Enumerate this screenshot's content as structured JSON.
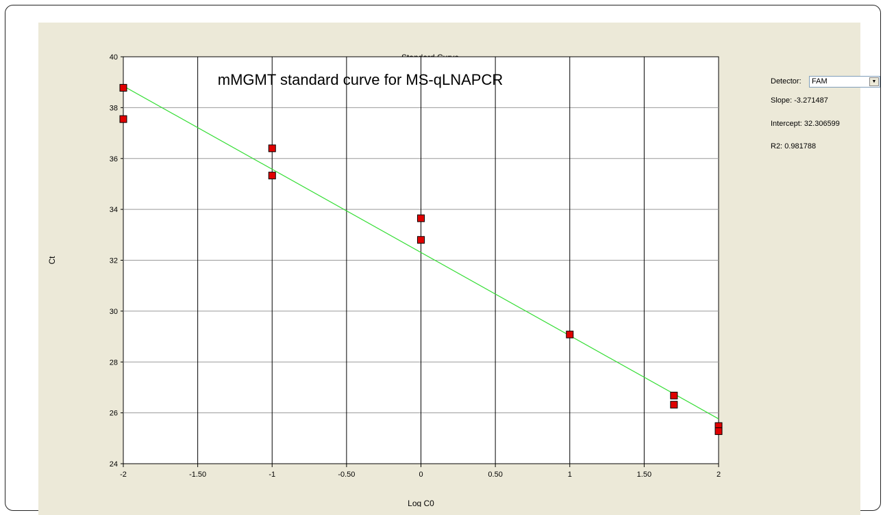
{
  "window": {
    "chart_heading": "Standard Curve",
    "detector_label": "Detector:",
    "detector_value": "FAM",
    "slope_label": "Slope:",
    "slope_value": "-3.271487",
    "intercept_label": "Intercept:",
    "intercept_value": "32.306599",
    "r2_label": "R2:",
    "r2_value": "0.981788"
  },
  "chart_data": {
    "type": "scatter",
    "title": "mMGMT standard curve for MS-qLNAPCR",
    "xlabel": "Log C0",
    "ylabel": "Ct",
    "xlim": [
      -2,
      2
    ],
    "ylim": [
      24,
      40
    ],
    "grid": true,
    "x_ticks": [
      -2,
      -1.5,
      -1,
      -0.5,
      0,
      0.5,
      1,
      1.5,
      2
    ],
    "x_tick_labels": [
      "-2",
      "-1.50",
      "-1",
      "-0.50",
      "0",
      "0.50",
      "1",
      "1.50",
      "2"
    ],
    "y_ticks": [
      24,
      26,
      28,
      30,
      32,
      34,
      36,
      38,
      40
    ],
    "y_tick_labels": [
      "24",
      "26",
      "28",
      "30",
      "32",
      "34",
      "36",
      "38",
      "40"
    ],
    "points": [
      {
        "x": -2,
        "y": 38.78
      },
      {
        "x": -2,
        "y": 37.55
      },
      {
        "x": -1,
        "y": 36.4
      },
      {
        "x": -1,
        "y": 35.33
      },
      {
        "x": 0,
        "y": 33.65
      },
      {
        "x": 0,
        "y": 32.8
      },
      {
        "x": 1,
        "y": 29.08
      },
      {
        "x": 1.7,
        "y": 26.68
      },
      {
        "x": 1.7,
        "y": 26.32
      },
      {
        "x": 2,
        "y": 25.48
      },
      {
        "x": 2,
        "y": 25.28
      }
    ],
    "fit_line": {
      "slope": -3.271487,
      "intercept": 32.306599
    },
    "colors": {
      "points": "#e00000",
      "fit_line": "#33dd33",
      "plot_bg": "#ffffff",
      "panel_bg": "#ece9d8"
    }
  }
}
